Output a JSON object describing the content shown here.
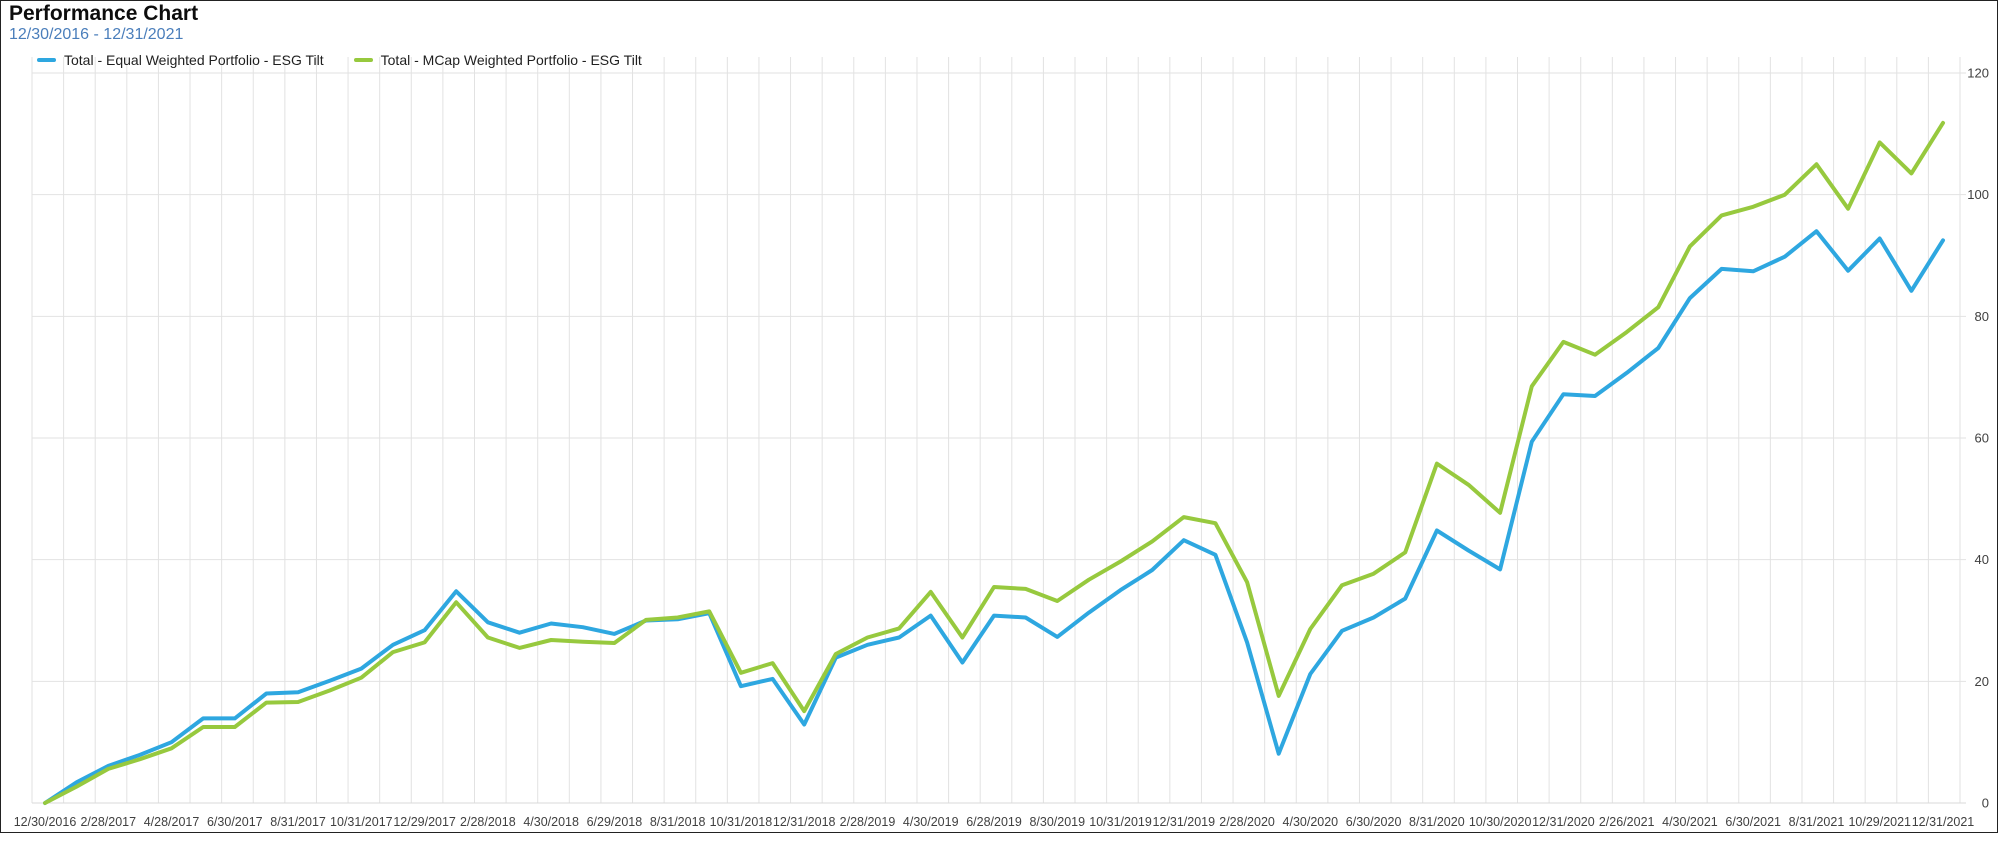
{
  "header": {
    "title": "Performance Chart",
    "subtitle": "12/30/2016 - 12/31/2021"
  },
  "legend": [
    {
      "label": "Total - Equal Weighted Portfolio - ESG Tilt",
      "color": "#2ea7e0"
    },
    {
      "label": "Total - MCap Weighted Portfolio - ESG Tilt",
      "color": "#97c93e"
    }
  ],
  "colors": {
    "title_text": "#0d0d0d",
    "subtitle_text": "#4a7ebb",
    "axis_text": "#404040",
    "gridline": "#e2e2e2",
    "baseline": "#d9d9d9",
    "frame_border": "#222222",
    "background": "#ffffff",
    "series_equal_weighted": "#2ea7e0",
    "series_mcap_weighted": "#97c93e"
  },
  "chart_data": {
    "type": "line",
    "title": "Performance Chart",
    "subtitle_date_range": "12/30/2016 - 12/31/2021",
    "x_tick_labels": [
      "12/30/2016",
      "2/28/2017",
      "4/28/2017",
      "6/30/2017",
      "8/31/2017",
      "10/31/2017",
      "12/29/2017",
      "2/28/2018",
      "4/30/2018",
      "6/29/2018",
      "8/31/2018",
      "10/31/2018",
      "12/31/2018",
      "2/28/2019",
      "4/30/2019",
      "6/28/2019",
      "8/30/2019",
      "10/31/2019",
      "12/31/2019",
      "2/28/2020",
      "4/30/2020",
      "6/30/2020",
      "8/31/2020",
      "10/30/2020",
      "12/31/2020",
      "2/26/2021",
      "4/30/2021",
      "6/30/2021",
      "8/31/2021",
      "10/29/2021",
      "12/31/2021"
    ],
    "points_per_tick": 2,
    "points_count": 61,
    "frequency": "monthly",
    "y_ticks": [
      0,
      20,
      40,
      60,
      80,
      100,
      120
    ],
    "ylim": [
      0,
      122.7
    ],
    "y_axis_side": "right",
    "grid": {
      "vertical": "monthly",
      "horizontal": "every 20 units"
    },
    "legend_position": "top-left",
    "series": [
      {
        "name": "Total - Equal Weighted Portfolio - ESG Tilt",
        "color": "#2ea7e0",
        "values": [
          0,
          3.4,
          6.1,
          7.9,
          10.0,
          13.9,
          13.9,
          18.0,
          18.2,
          20.1,
          22.1,
          26.0,
          28.4,
          34.8,
          29.7,
          28.0,
          29.5,
          28.9,
          27.8,
          30.0,
          30.2,
          31.2,
          19.2,
          20.4,
          12.9,
          23.9,
          26.0,
          27.2,
          30.8,
          23.1,
          30.8,
          30.5,
          27.3,
          31.3,
          35.0,
          38.3,
          43.2,
          40.8,
          26.4,
          8.1,
          21.2,
          28.3,
          30.5,
          33.6,
          44.8,
          41.5,
          38.4,
          59.4,
          67.2,
          66.9,
          70.7,
          74.8,
          83.0,
          87.8,
          87.4,
          89.8,
          94.0,
          87.5,
          92.8,
          84.2,
          92.5
        ]
      },
      {
        "name": "Total - MCap Weighted Portfolio - ESG Tilt",
        "color": "#97c93e",
        "values": [
          0,
          2.7,
          5.6,
          7.2,
          9.0,
          12.5,
          12.5,
          16.5,
          16.6,
          18.5,
          20.6,
          24.8,
          26.4,
          33.0,
          27.2,
          25.5,
          26.8,
          26.5,
          26.3,
          30.1,
          30.5,
          31.5,
          21.4,
          23.0,
          15.1,
          24.5,
          27.2,
          28.7,
          34.7,
          27.2,
          35.5,
          35.2,
          33.2,
          36.7,
          39.7,
          43.0,
          47.0,
          46.0,
          36.3,
          17.6,
          28.6,
          35.8,
          37.7,
          41.2,
          55.8,
          52.3,
          47.7,
          68.5,
          75.8,
          73.7,
          77.4,
          81.5,
          91.5,
          96.6,
          98.0,
          100.0,
          105.0,
          97.7,
          108.6,
          103.5,
          111.8
        ]
      }
    ]
  }
}
